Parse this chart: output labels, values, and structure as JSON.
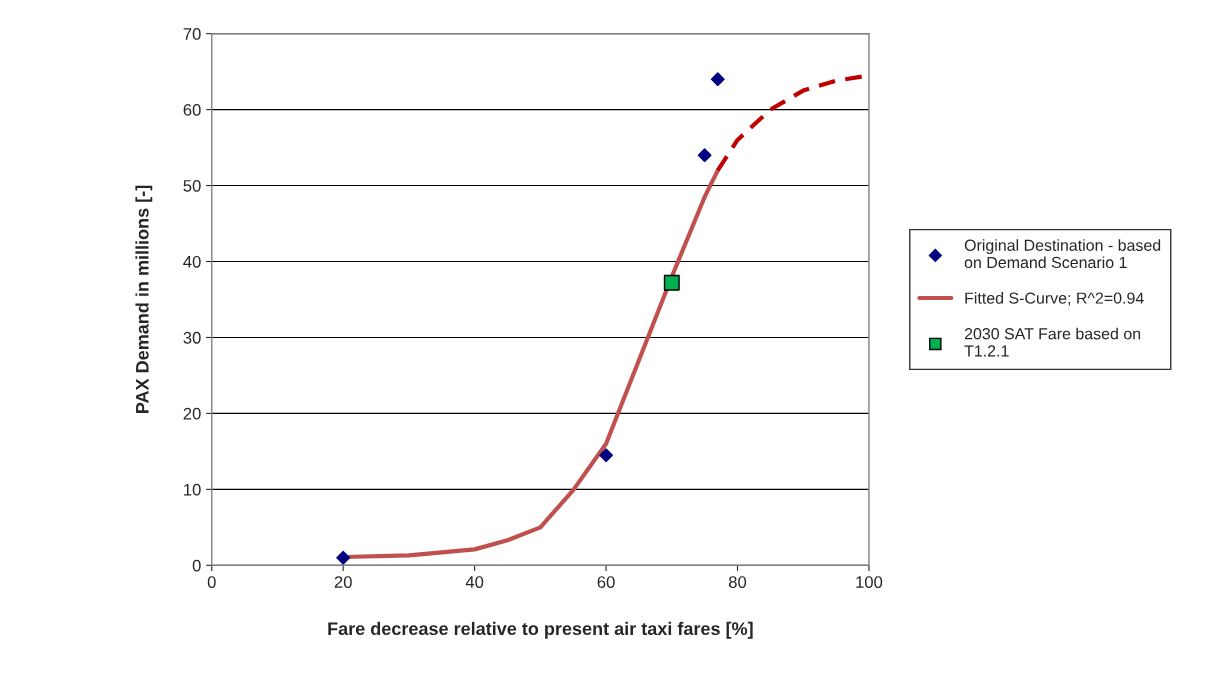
{
  "chart_data": {
    "type": "scatter",
    "xlabel": "Fare decrease relative to present air taxi fares [%]",
    "ylabel": "PAX Demand in millions [-]",
    "xlim": [
      0,
      100
    ],
    "xticks": [
      0,
      20,
      40,
      60,
      80,
      100
    ],
    "ylim": [
      0,
      70
    ],
    "yticks": [
      0,
      10,
      20,
      30,
      40,
      50,
      60,
      70
    ],
    "grid": "y",
    "legend": "right",
    "series": [
      {
        "name": "Original Destination - based\non Demand Scenario 1",
        "color": "#000080",
        "marker": "diamond",
        "x": [
          20,
          60,
          75,
          77
        ],
        "values": [
          1.0,
          14.5,
          54,
          64
        ]
      },
      {
        "type": "line",
        "name": "Fitted S-Curve; R^2=0.94",
        "color": "#c0504d",
        "line_style": "solid",
        "marker": "none",
        "x": [
          20,
          30,
          40,
          45,
          50,
          55,
          60,
          65,
          70,
          75,
          77
        ],
        "values": [
          1.1,
          1.3,
          2.1,
          3.3,
          5.0,
          9.9,
          16,
          27,
          38,
          48.5,
          52
        ]
      },
      {
        "type": "line",
        "color": "#c00000",
        "line_style": "dashed",
        "marker": "none",
        "x": [
          77,
          80,
          85,
          90,
          95,
          100
        ],
        "values": [
          52,
          56,
          60,
          62.5,
          63.8,
          64.5
        ]
      },
      {
        "name": "2030 SAT Fare based on\nT1.2.1",
        "color": "#00b050",
        "marker": "square",
        "x": [
          70
        ],
        "values": [
          37.2
        ]
      }
    ]
  }
}
